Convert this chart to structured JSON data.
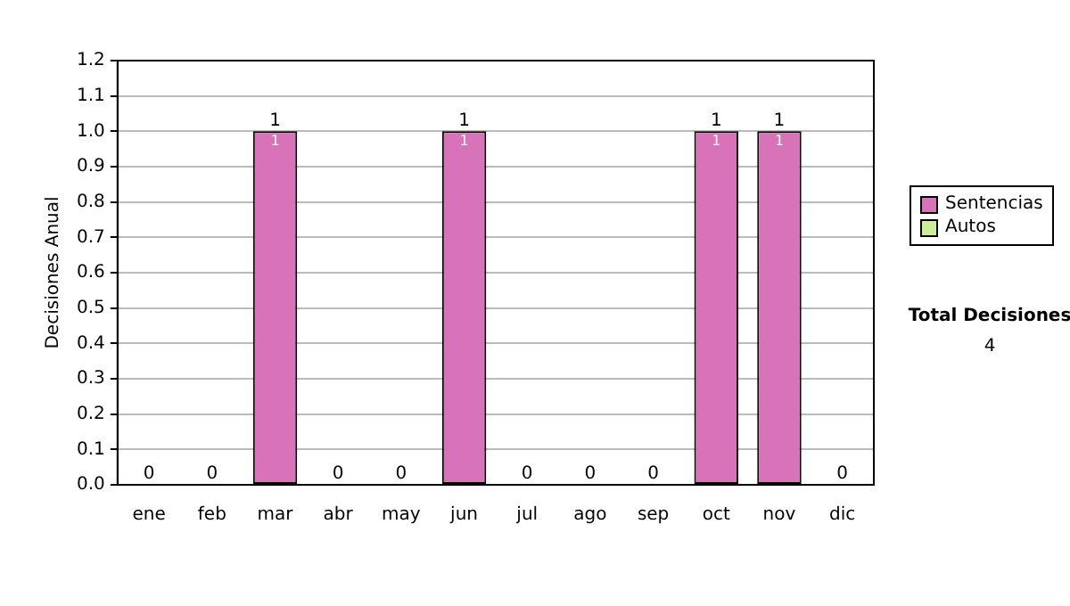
{
  "chart_data": {
    "type": "bar",
    "stacked": true,
    "ylabel": "Decisiones Anual",
    "categories": [
      "ene",
      "feb",
      "mar",
      "abr",
      "may",
      "jun",
      "jul",
      "ago",
      "sep",
      "oct",
      "nov",
      "dic"
    ],
    "series": [
      {
        "name": "Sentencias",
        "color": "#d872b9",
        "values": [
          0,
          0,
          1,
          0,
          0,
          1,
          0,
          0,
          0,
          1,
          1,
          0
        ],
        "value_labels": [
          null,
          null,
          "1",
          null,
          null,
          "1",
          null,
          null,
          null,
          "1",
          "1",
          null
        ]
      },
      {
        "name": "Autos",
        "color": "#ccee99",
        "values": [
          0,
          0,
          0,
          0,
          0,
          0,
          0,
          0,
          0,
          0,
          0,
          0
        ]
      }
    ],
    "totals": [
      "0",
      "0",
      "1",
      "0",
      "0",
      "1",
      "0",
      "0",
      "0",
      "1",
      "1",
      "0"
    ],
    "ylim": [
      0,
      1.2
    ],
    "yticks": [
      {
        "value": 0,
        "label": "0.0"
      },
      {
        "value": 0.1,
        "label": "0.1"
      },
      {
        "value": 0.2,
        "label": "0.2"
      },
      {
        "value": 0.3,
        "label": "0.3"
      },
      {
        "value": 0.4,
        "label": "0.4"
      },
      {
        "value": 0.5,
        "label": "0.5"
      },
      {
        "value": 0.6,
        "label": "0.6"
      },
      {
        "value": 0.7,
        "label": "0.7"
      },
      {
        "value": 0.8,
        "label": "0.8"
      },
      {
        "value": 0.9,
        "label": "0.9"
      },
      {
        "value": 1,
        "label": "1.0"
      },
      {
        "value": 1.1,
        "label": "1.1"
      },
      {
        "value": 1.2,
        "label": "1.2"
      }
    ],
    "grid": "y",
    "legend": "right",
    "annotations": [
      "Total Decisiones",
      "4"
    ]
  }
}
